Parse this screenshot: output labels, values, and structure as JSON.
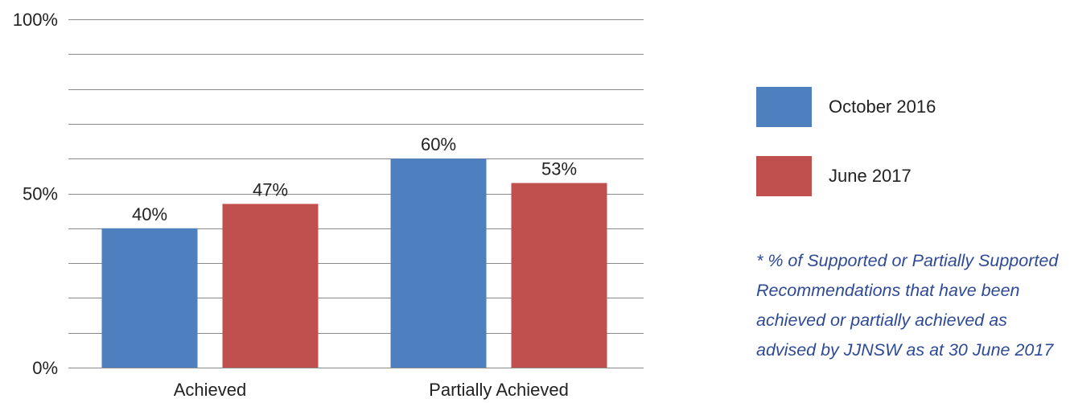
{
  "chart_data": {
    "type": "bar",
    "categories": [
      "Achieved",
      "Partially Achieved"
    ],
    "series": [
      {
        "name": "October 2016",
        "values": [
          40,
          60
        ],
        "color": "#4e7fbf"
      },
      {
        "name": "June 2017",
        "values": [
          47,
          53
        ],
        "color": "#c0504d"
      }
    ],
    "data_labels": [
      [
        "40%",
        "60%"
      ],
      [
        "47%",
        "53%"
      ]
    ],
    "ylim": [
      0,
      100
    ],
    "yticks": [
      0,
      50,
      100
    ],
    "ytick_labels": [
      "0%",
      "50%",
      "100%"
    ],
    "gridlines_every": 10,
    "grid": true,
    "legend_position": "right",
    "footnote": "* % of Supported or Partially Supported Recommendations that have been achieved or partially achieved as advised by JJNSW as at 30 June 2017"
  }
}
